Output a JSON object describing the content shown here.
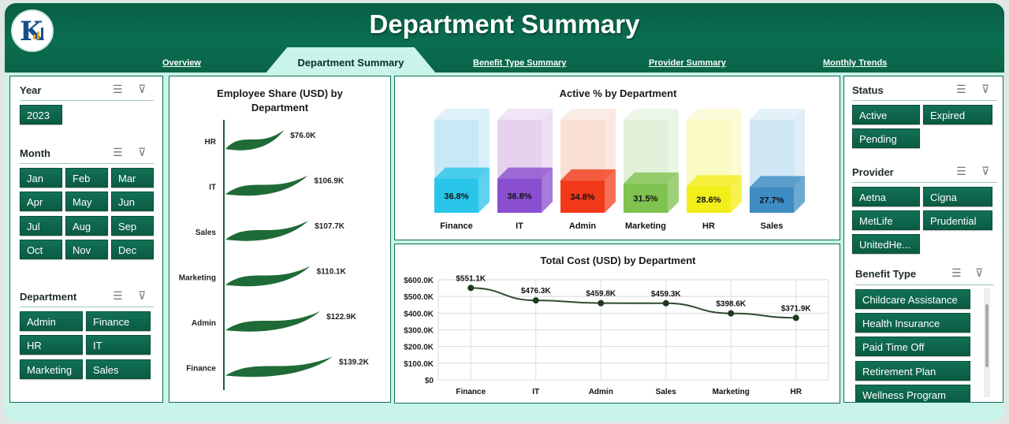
{
  "header": {
    "title": "Department Summary",
    "tabs": [
      {
        "label": "Overview",
        "active": false
      },
      {
        "label": "Department Summary",
        "active": true
      },
      {
        "label": "Benefit Type Summary",
        "active": false
      },
      {
        "label": "Provider Summary",
        "active": false
      },
      {
        "label": "Monthly Trends",
        "active": false
      }
    ]
  },
  "slicers": {
    "year": {
      "title": "Year",
      "items": [
        "2023"
      ]
    },
    "month": {
      "title": "Month",
      "items": [
        "Jan",
        "Feb",
        "Mar",
        "Apr",
        "May",
        "Jun",
        "Jul",
        "Aug",
        "Sep",
        "Oct",
        "Nov",
        "Dec"
      ]
    },
    "department": {
      "title": "Department",
      "items": [
        "Admin",
        "Finance",
        "HR",
        "IT",
        "Marketing",
        "Sales"
      ]
    },
    "status": {
      "title": "Status",
      "items": [
        "Active",
        "Expired",
        "Pending"
      ]
    },
    "provider": {
      "title": "Provider",
      "items": [
        "Aetna",
        "Cigna",
        "MetLife",
        "Prudential",
        "UnitedHe..."
      ]
    },
    "benefit_type": {
      "title": "Benefit Type",
      "items": [
        "Childcare Assistance",
        "Health Insurance",
        "Paid Time Off",
        "Retirement Plan",
        "Wellness Program"
      ]
    }
  },
  "colors": {
    "accent": "#0b6e50",
    "background": "#c9f4ea"
  },
  "chart_data": [
    {
      "type": "bar",
      "orientation": "horizontal",
      "title": "Employee Share (USD) by Department",
      "categories": [
        "HR",
        "IT",
        "Sales",
        "Marketing",
        "Admin",
        "Finance"
      ],
      "values": [
        76.0,
        106.9,
        107.7,
        110.1,
        122.9,
        139.2
      ],
      "labels": [
        "$76.0K",
        "$106.9K",
        "$107.7K",
        "$110.1K",
        "$122.9K",
        "$139.2K"
      ],
      "unit": "K USD"
    },
    {
      "type": "bar",
      "title": "Active % by Department",
      "categories": [
        "Finance",
        "IT",
        "Admin",
        "Marketing",
        "HR",
        "Sales"
      ],
      "values": [
        36.8,
        36.8,
        34.8,
        31.5,
        28.6,
        27.7
      ],
      "labels": [
        "36.8%",
        "36.8%",
        "34.8%",
        "31.5%",
        "28.6%",
        "27.7%"
      ],
      "ylim": [
        0,
        100
      ],
      "colors": [
        "#29c6ea",
        "#8a4fd0",
        "#f23a1a",
        "#7fc24f",
        "#f2ee1a",
        "#3f8cc2"
      ]
    },
    {
      "type": "line",
      "title": "Total Cost (USD) by Department",
      "categories": [
        "Finance",
        "IT",
        "Admin",
        "Sales",
        "Marketing",
        "HR"
      ],
      "values": [
        551.1,
        476.3,
        459.8,
        459.3,
        398.6,
        371.9
      ],
      "labels": [
        "$551.1K",
        "$476.3K",
        "$459.8K",
        "$459.3K",
        "$398.6K",
        "$371.9K"
      ],
      "yticks": [
        "$0",
        "$100.0K",
        "$200.0K",
        "$300.0K",
        "$400.0K",
        "$500.0K",
        "$600.0K"
      ],
      "ylim": [
        0,
        600
      ],
      "grid": true
    }
  ]
}
